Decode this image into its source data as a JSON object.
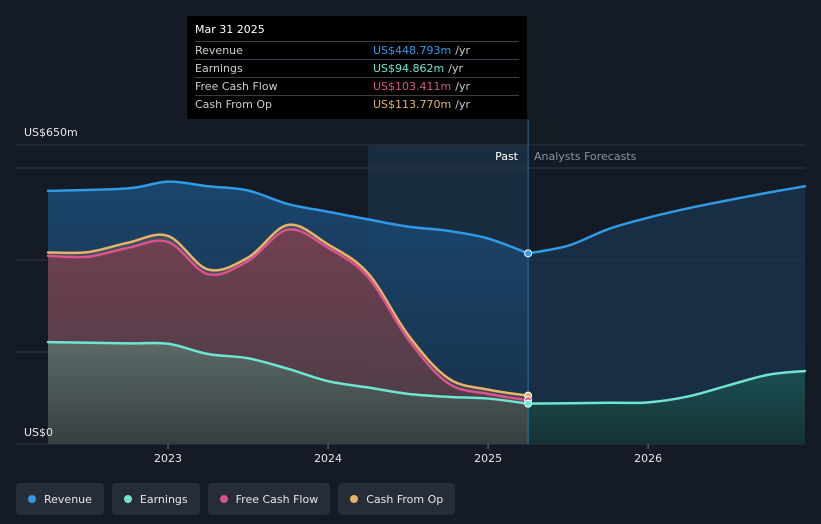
{
  "tooltip": {
    "date": "Mar 31 2025",
    "rows": [
      {
        "label": "Revenue",
        "value": "US$448.793m",
        "unit": "/yr",
        "color": "#2f9ae6"
      },
      {
        "label": "Earnings",
        "value": "US$94.862m",
        "unit": "/yr",
        "color": "#6ee6d2"
      },
      {
        "label": "Free Cash Flow",
        "value": "US$103.411m",
        "unit": "/yr",
        "color": "#d9538c"
      },
      {
        "label": "Cash From Op",
        "value": "US$113.770m",
        "unit": "/yr",
        "color": "#e9b467"
      }
    ]
  },
  "legend": [
    {
      "label": "Revenue",
      "color": "#2f9ae6"
    },
    {
      "label": "Earnings",
      "color": "#6ee6d2"
    },
    {
      "label": "Free Cash Flow",
      "color": "#d9538c"
    },
    {
      "label": "Cash From Op",
      "color": "#e9b467"
    }
  ],
  "chart_data": {
    "type": "area",
    "title": "",
    "y_top_label": "US$650m",
    "y_bottom_label": "US$0",
    "ylim": [
      0,
      650
    ],
    "xlim": [
      2022.25,
      2026.98
    ],
    "x_ticks": [
      {
        "value": 2023.0,
        "label": "2023"
      },
      {
        "value": 2024.0,
        "label": "2024"
      },
      {
        "value": 2025.0,
        "label": "2025"
      },
      {
        "value": 2026.0,
        "label": "2026"
      }
    ],
    "period_labels": {
      "past": "Past",
      "forecast": "Analysts Forecasts"
    },
    "highlight_range": [
      2024.25,
      2025.25
    ],
    "divider_x": 2025.25,
    "series": [
      {
        "name": "Revenue",
        "color": "#2f9ae6",
        "points": [
          [
            2022.25,
            596
          ],
          [
            2022.75,
            602
          ],
          [
            2023.0,
            618
          ],
          [
            2023.25,
            607
          ],
          [
            2023.5,
            597
          ],
          [
            2023.75,
            565
          ],
          [
            2024.0,
            547
          ],
          [
            2024.25,
            529
          ],
          [
            2024.5,
            512
          ],
          [
            2024.75,
            502
          ],
          [
            2025.0,
            484
          ],
          [
            2025.25,
            449
          ]
        ],
        "forecast": [
          [
            2025.25,
            449
          ],
          [
            2025.5,
            467
          ],
          [
            2025.75,
            506
          ],
          [
            2026.0,
            533
          ],
          [
            2026.25,
            555
          ],
          [
            2026.5,
            574
          ],
          [
            2026.75,
            592
          ],
          [
            2026.98,
            607
          ]
        ]
      },
      {
        "name": "Cash From Op",
        "color": "#e9b467",
        "points": [
          [
            2022.25,
            451
          ],
          [
            2022.5,
            452
          ],
          [
            2022.75,
            474
          ],
          [
            2023.0,
            490
          ],
          [
            2023.25,
            411
          ],
          [
            2023.5,
            439
          ],
          [
            2023.75,
            516
          ],
          [
            2024.0,
            470
          ],
          [
            2024.25,
            402
          ],
          [
            2024.5,
            257
          ],
          [
            2024.75,
            155
          ],
          [
            2025.0,
            128
          ],
          [
            2025.25,
            114
          ]
        ]
      },
      {
        "name": "Free Cash Flow",
        "color": "#d9538c",
        "points": [
          [
            2022.25,
            443
          ],
          [
            2022.5,
            441
          ],
          [
            2022.75,
            462
          ],
          [
            2023.0,
            476
          ],
          [
            2023.25,
            400
          ],
          [
            2023.5,
            431
          ],
          [
            2023.75,
            505
          ],
          [
            2024.0,
            462
          ],
          [
            2024.25,
            393
          ],
          [
            2024.5,
            247
          ],
          [
            2024.75,
            143
          ],
          [
            2025.0,
            118
          ],
          [
            2025.25,
            103
          ]
        ]
      },
      {
        "name": "Earnings",
        "color": "#6ee6d2",
        "points": [
          [
            2022.25,
            240
          ],
          [
            2022.75,
            237
          ],
          [
            2023.0,
            236
          ],
          [
            2023.25,
            212
          ],
          [
            2023.5,
            202
          ],
          [
            2023.75,
            177
          ],
          [
            2024.0,
            148
          ],
          [
            2024.25,
            133
          ],
          [
            2024.5,
            118
          ],
          [
            2024.75,
            111
          ],
          [
            2025.0,
            107
          ],
          [
            2025.25,
            95
          ]
        ],
        "forecast": [
          [
            2025.25,
            95
          ],
          [
            2025.75,
            97
          ],
          [
            2026.0,
            98
          ],
          [
            2026.25,
            112
          ],
          [
            2026.5,
            138
          ],
          [
            2026.75,
            163
          ],
          [
            2026.98,
            172
          ]
        ]
      }
    ]
  }
}
